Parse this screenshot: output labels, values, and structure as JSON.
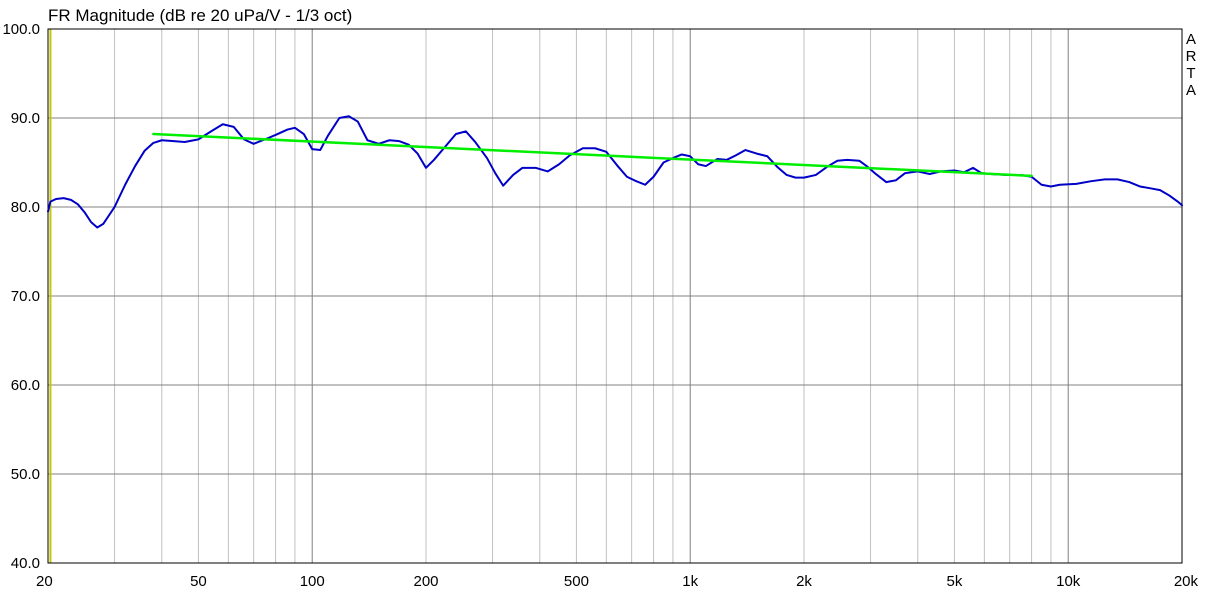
{
  "chart_data": {
    "type": "line",
    "title": "FR Magnitude (dB re 20 uPa/V - 1/3 oct)",
    "brand": "ARTA",
    "x_scale": "log",
    "xlim": [
      20,
      20000
    ],
    "ylim": [
      40,
      100
    ],
    "grid": true,
    "x_ticks": [
      {
        "value": 20,
        "label": "20"
      },
      {
        "value": 50,
        "label": "50"
      },
      {
        "value": 100,
        "label": "100"
      },
      {
        "value": 200,
        "label": "200"
      },
      {
        "value": 500,
        "label": "500"
      },
      {
        "value": 1000,
        "label": "1k"
      },
      {
        "value": 2000,
        "label": "2k"
      },
      {
        "value": 5000,
        "label": "5k"
      },
      {
        "value": 10000,
        "label": "10k"
      },
      {
        "value": 20000,
        "label": "20k"
      }
    ],
    "y_ticks": [
      {
        "value": 40,
        "label": "40.0"
      },
      {
        "value": 50,
        "label": "50.0"
      },
      {
        "value": 60,
        "label": "60.0"
      },
      {
        "value": 70,
        "label": "70.0"
      },
      {
        "value": 80,
        "label": "80.0"
      },
      {
        "value": 90,
        "label": "90.0"
      },
      {
        "value": 100,
        "label": "100.0"
      }
    ],
    "marker_line": {
      "x": 20.3,
      "color": "#c8c800"
    },
    "series": [
      {
        "color": "#0000c8",
        "points": [
          [
            20,
            79.5
          ],
          [
            20.3,
            80.6
          ],
          [
            21,
            80.9
          ],
          [
            22,
            81.0
          ],
          [
            23,
            80.8
          ],
          [
            24,
            80.3
          ],
          [
            25,
            79.4
          ],
          [
            26,
            78.3
          ],
          [
            27,
            77.7
          ],
          [
            28,
            78.1
          ],
          [
            30,
            80.0
          ],
          [
            32,
            82.5
          ],
          [
            34,
            84.6
          ],
          [
            36,
            86.3
          ],
          [
            38,
            87.2
          ],
          [
            40,
            87.5
          ],
          [
            43,
            87.4
          ],
          [
            46,
            87.3
          ],
          [
            50,
            87.6
          ],
          [
            54,
            88.5
          ],
          [
            58,
            89.3
          ],
          [
            62,
            89.0
          ],
          [
            66,
            87.6
          ],
          [
            70,
            87.1
          ],
          [
            75,
            87.6
          ],
          [
            80,
            88.1
          ],
          [
            86,
            88.7
          ],
          [
            90,
            88.9
          ],
          [
            95,
            88.2
          ],
          [
            100,
            86.5
          ],
          [
            105,
            86.4
          ],
          [
            110,
            88.0
          ],
          [
            118,
            90.0
          ],
          [
            125,
            90.2
          ],
          [
            132,
            89.6
          ],
          [
            140,
            87.5
          ],
          [
            150,
            87.1
          ],
          [
            160,
            87.5
          ],
          [
            170,
            87.4
          ],
          [
            180,
            87.0
          ],
          [
            190,
            86.0
          ],
          [
            200,
            84.4
          ],
          [
            210,
            85.3
          ],
          [
            225,
            86.8
          ],
          [
            240,
            88.2
          ],
          [
            255,
            88.5
          ],
          [
            270,
            87.3
          ],
          [
            290,
            85.5
          ],
          [
            305,
            83.8
          ],
          [
            320,
            82.4
          ],
          [
            340,
            83.6
          ],
          [
            360,
            84.4
          ],
          [
            390,
            84.4
          ],
          [
            420,
            84.0
          ],
          [
            450,
            84.8
          ],
          [
            480,
            85.8
          ],
          [
            520,
            86.6
          ],
          [
            560,
            86.6
          ],
          [
            600,
            86.2
          ],
          [
            640,
            84.7
          ],
          [
            680,
            83.4
          ],
          [
            720,
            82.9
          ],
          [
            760,
            82.5
          ],
          [
            800,
            83.4
          ],
          [
            850,
            85.0
          ],
          [
            900,
            85.5
          ],
          [
            950,
            85.9
          ],
          [
            1000,
            85.7
          ],
          [
            1050,
            84.8
          ],
          [
            1100,
            84.6
          ],
          [
            1180,
            85.4
          ],
          [
            1250,
            85.3
          ],
          [
            1320,
            85.8
          ],
          [
            1400,
            86.4
          ],
          [
            1500,
            86.0
          ],
          [
            1600,
            85.7
          ],
          [
            1700,
            84.5
          ],
          [
            1800,
            83.6
          ],
          [
            1900,
            83.3
          ],
          [
            2000,
            83.3
          ],
          [
            2150,
            83.6
          ],
          [
            2300,
            84.5
          ],
          [
            2450,
            85.2
          ],
          [
            2600,
            85.3
          ],
          [
            2800,
            85.2
          ],
          [
            2950,
            84.5
          ],
          [
            3100,
            83.7
          ],
          [
            3300,
            82.8
          ],
          [
            3500,
            83.0
          ],
          [
            3700,
            83.8
          ],
          [
            4000,
            84.0
          ],
          [
            4300,
            83.7
          ],
          [
            4600,
            84.0
          ],
          [
            5000,
            84.1
          ],
          [
            5300,
            83.9
          ],
          [
            5600,
            84.4
          ],
          [
            5900,
            83.8
          ],
          [
            6300,
            83.7
          ],
          [
            6900,
            83.6
          ],
          [
            7500,
            83.6
          ],
          [
            8000,
            83.4
          ],
          [
            8500,
            82.5
          ],
          [
            9000,
            82.3
          ],
          [
            9500,
            82.5
          ],
          [
            10500,
            82.6
          ],
          [
            11500,
            82.9
          ],
          [
            12500,
            83.1
          ],
          [
            13500,
            83.1
          ],
          [
            14500,
            82.8
          ],
          [
            15500,
            82.3
          ],
          [
            16500,
            82.1
          ],
          [
            17500,
            81.9
          ],
          [
            18500,
            81.3
          ],
          [
            19500,
            80.6
          ],
          [
            20000,
            80.2
          ]
        ]
      },
      {
        "color": "#00ee00",
        "points": [
          [
            38,
            88.2
          ],
          [
            8000,
            83.5
          ]
        ]
      }
    ]
  }
}
